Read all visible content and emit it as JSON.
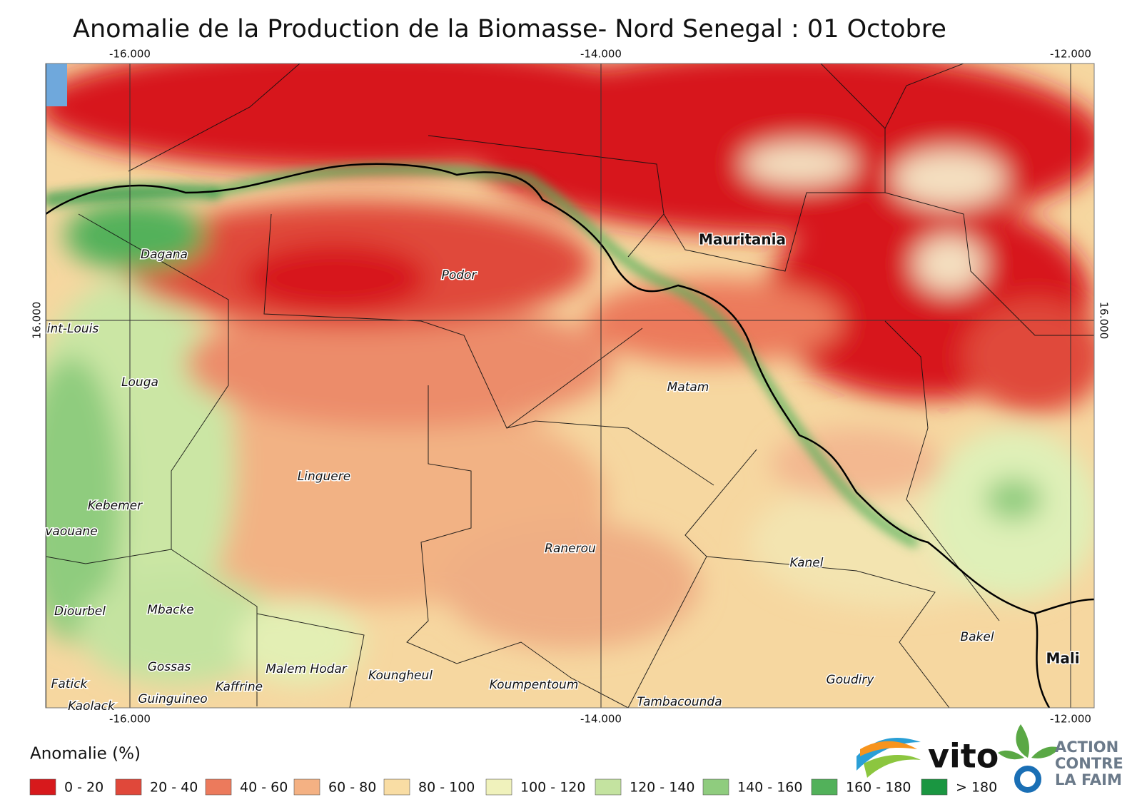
{
  "title": "Anomalie de la Production de la Biomasse- Nord Senegal : 01 Octobre",
  "grid_labels": {
    "top": [
      "-16.000",
      "-14.000",
      "-12.000"
    ],
    "bottom": [
      "-16.000",
      "-14.000",
      "-12.000"
    ],
    "left": "16.000",
    "right": "16.000"
  },
  "places": [
    "Dagana",
    "Podor",
    "Mauritania",
    "int-Louis",
    "Louga",
    "Matam",
    "Linguere",
    "Kebemer",
    "vaouane",
    "Ranerou",
    "Kanel",
    "Diourbel",
    "Mbacke",
    "Bakel",
    "Mali",
    "Gossas",
    "Malem Hodar",
    "Koungheul",
    "Fatick",
    "Kaffrine",
    "Koumpentoum",
    "Goudiry",
    "Guinguineo",
    "Kaolack",
    "Tambacounda"
  ],
  "legend": {
    "title": "Anomalie (%)",
    "items": [
      {
        "label": "0 - 20",
        "color": "#d7191c"
      },
      {
        "label": "20 - 40",
        "color": "#e0483a"
      },
      {
        "label": "40 - 60",
        "color": "#ec7a5c"
      },
      {
        "label": "60 - 80",
        "color": "#f4b183"
      },
      {
        "label": "80 - 100",
        "color": "#f9dda4"
      },
      {
        "label": "100 - 120",
        "color": "#f0f2bc"
      },
      {
        "label": "120 - 140",
        "color": "#c4e3a0"
      },
      {
        "label": "140 - 160",
        "color": "#8fcc7e"
      },
      {
        "label": "160 - 180",
        "color": "#52b15a"
      },
      {
        "label": "> 180",
        "color": "#1a9641"
      }
    ]
  },
  "logos": {
    "vito": "vito",
    "acf": [
      "ACTION",
      "CONTRE",
      "LA FAIM"
    ]
  }
}
